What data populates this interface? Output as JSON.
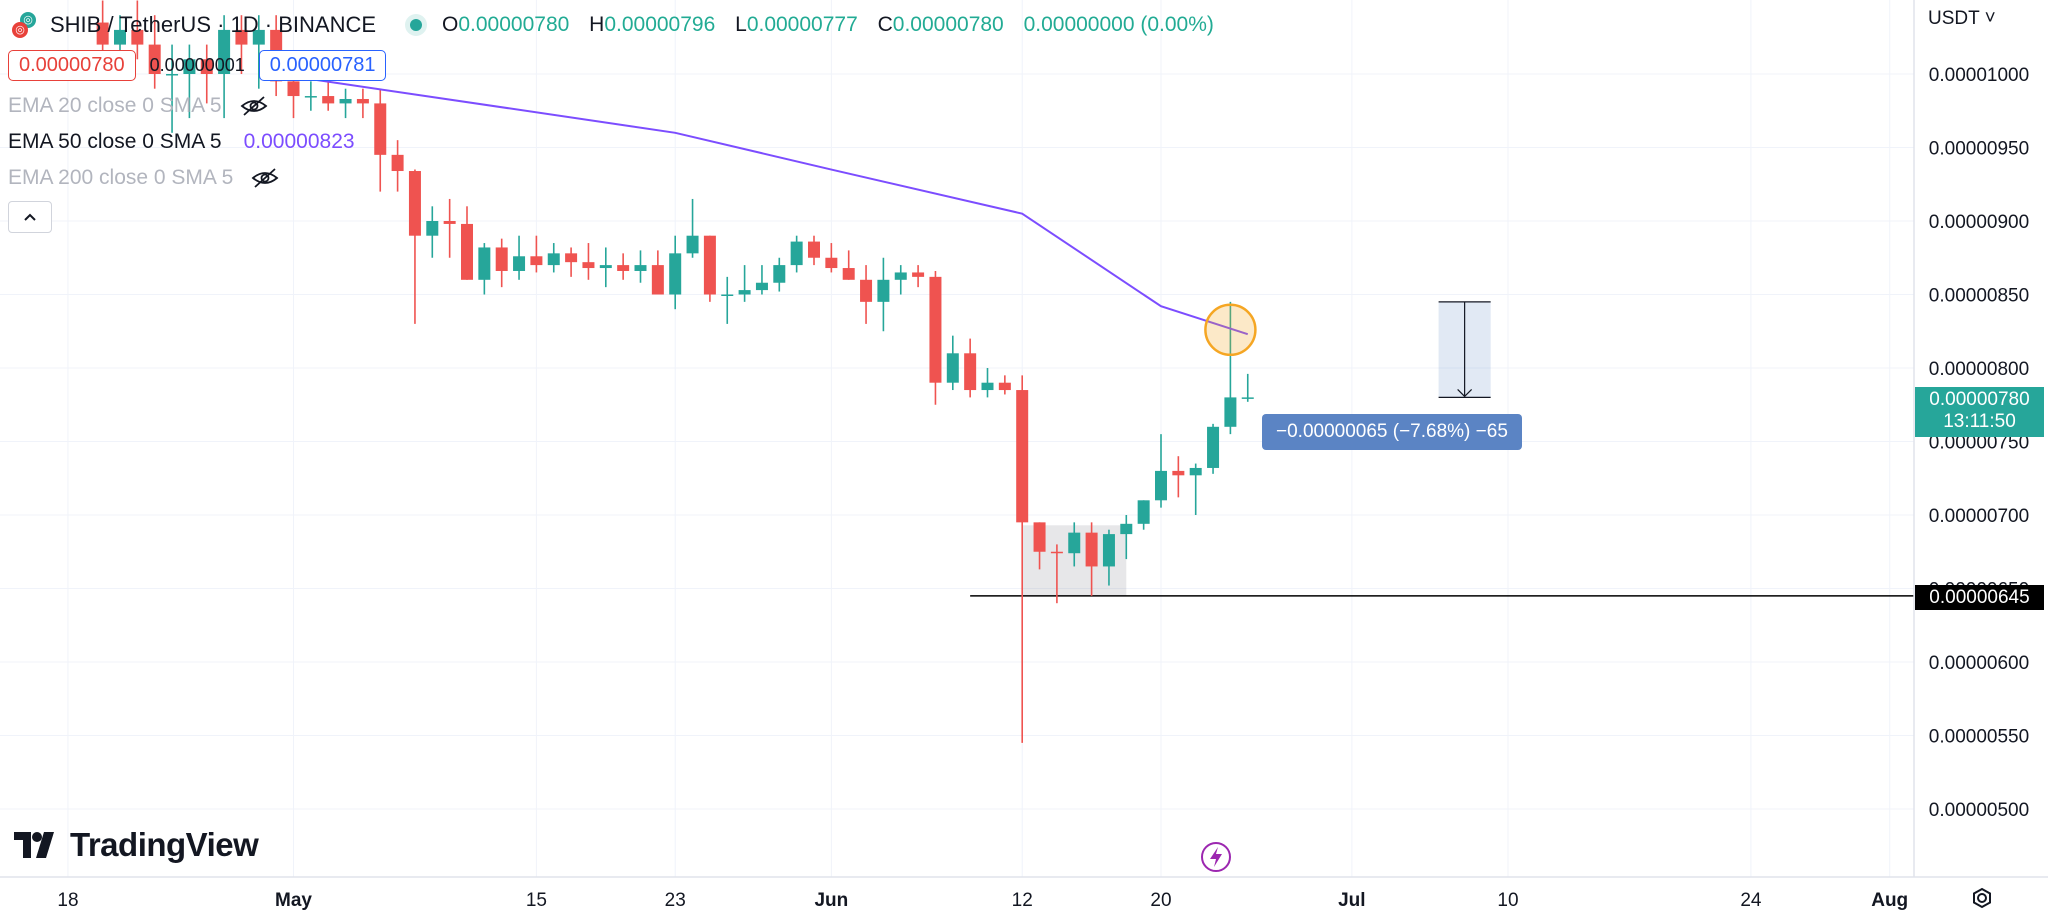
{
  "header": {
    "symbol_title": "SHIB / TetherUS · 1D · BINANCE",
    "ohlc": {
      "o_label": "O",
      "o": "0.00000780",
      "h_label": "H",
      "h": "0.00000796",
      "l_label": "L",
      "l": "0.00000777",
      "c_label": "C",
      "c": "0.00000780",
      "change": "0.00000000 (0.00%)"
    },
    "sell_price": "0.00000780",
    "spread": "0.00000001",
    "buy_price": "0.00000781"
  },
  "indicators": [
    {
      "label": "EMA 20 close 0 SMA 5",
      "visible": false
    },
    {
      "label": "EMA 50 close 0 SMA 5",
      "value": "0.00000823",
      "visible": true
    },
    {
      "label": "EMA 200 close 0 SMA 5",
      "visible": false
    }
  ],
  "quote_currency": "USDT",
  "brand": "TradingView",
  "labels": {
    "current_price": "0.00000780",
    "countdown": "13:11:50",
    "horizontal_line": "0.00000645",
    "measure": "−0.00000065 (−7.68%) −65"
  },
  "colors": {
    "up": "#26a69a",
    "down": "#ef5350",
    "ema50": "#7c4dff",
    "measure_fill": "#5b84c4",
    "highlight": "#f5a623"
  },
  "chart_data": {
    "type": "candlestick",
    "interval": "1D",
    "y_axis": {
      "ticks": [
        "0.00000500",
        "0.00000550",
        "0.00000600",
        "0.00000650",
        "0.00000700",
        "0.00000750",
        "0.00000800",
        "0.00000850",
        "0.00000900",
        "0.00000950",
        "0.00001000"
      ],
      "unit": "USDT"
    },
    "x_axis": {
      "ticks": [
        "18",
        "May",
        "15",
        "23",
        "Jun",
        "12",
        "20",
        "Jul",
        "10",
        "24",
        "Aug"
      ]
    },
    "candles": [
      {
        "date": "2024-04-20",
        "o": 1.035,
        "h": 1.05,
        "l": 1.01,
        "c": 1.02
      },
      {
        "date": "2024-04-21",
        "o": 1.02,
        "h": 1.04,
        "l": 1.0,
        "c": 1.03
      },
      {
        "date": "2024-04-22",
        "o": 1.03,
        "h": 1.05,
        "l": 1.01,
        "c": 1.02
      },
      {
        "date": "2024-04-23",
        "o": 1.02,
        "h": 1.04,
        "l": 0.99,
        "c": 1.0
      },
      {
        "date": "2024-04-24",
        "o": 1.0,
        "h": 1.02,
        "l": 0.96,
        "c": 1.0
      },
      {
        "date": "2024-04-25",
        "o": 1.0,
        "h": 1.02,
        "l": 0.97,
        "c": 1.01
      },
      {
        "date": "2024-04-26",
        "o": 1.01,
        "h": 1.02,
        "l": 0.98,
        "c": 1.0
      },
      {
        "date": "2024-04-27",
        "o": 1.0,
        "h": 1.04,
        "l": 0.97,
        "c": 1.03
      },
      {
        "date": "2024-04-28",
        "o": 1.03,
        "h": 1.04,
        "l": 1.0,
        "c": 1.02
      },
      {
        "date": "2024-04-29",
        "o": 1.02,
        "h": 1.04,
        "l": 0.99,
        "c": 1.03
      },
      {
        "date": "2024-04-30",
        "o": 1.03,
        "h": 1.04,
        "l": 0.985,
        "c": 0.995
      },
      {
        "date": "2024-05-01",
        "o": 0.995,
        "h": 1.0,
        "l": 0.97,
        "c": 0.985
      },
      {
        "date": "2024-05-02",
        "o": 0.985,
        "h": 0.995,
        "l": 0.975,
        "c": 0.985
      },
      {
        "date": "2024-05-03",
        "o": 0.985,
        "h": 0.995,
        "l": 0.975,
        "c": 0.98
      },
      {
        "date": "2024-05-04",
        "o": 0.98,
        "h": 0.99,
        "l": 0.97,
        "c": 0.983
      },
      {
        "date": "2024-05-05",
        "o": 0.983,
        "h": 0.99,
        "l": 0.97,
        "c": 0.98
      },
      {
        "date": "2024-05-06",
        "o": 0.98,
        "h": 0.99,
        "l": 0.92,
        "c": 0.945
      },
      {
        "date": "2024-05-07",
        "o": 0.945,
        "h": 0.955,
        "l": 0.92,
        "c": 0.934
      },
      {
        "date": "2024-05-08",
        "o": 0.934,
        "h": 0.935,
        "l": 0.83,
        "c": 0.89
      },
      {
        "date": "2024-05-09",
        "o": 0.89,
        "h": 0.91,
        "l": 0.875,
        "c": 0.9
      },
      {
        "date": "2024-05-10",
        "o": 0.9,
        "h": 0.915,
        "l": 0.875,
        "c": 0.898
      },
      {
        "date": "2024-05-11",
        "o": 0.898,
        "h": 0.91,
        "l": 0.86,
        "c": 0.86
      },
      {
        "date": "2024-05-12",
        "o": 0.86,
        "h": 0.885,
        "l": 0.85,
        "c": 0.882
      },
      {
        "date": "2024-05-13",
        "o": 0.882,
        "h": 0.888,
        "l": 0.855,
        "c": 0.866
      },
      {
        "date": "2024-05-14",
        "o": 0.866,
        "h": 0.89,
        "l": 0.86,
        "c": 0.876
      },
      {
        "date": "2024-05-15",
        "o": 0.876,
        "h": 0.89,
        "l": 0.865,
        "c": 0.87
      },
      {
        "date": "2024-05-16",
        "o": 0.87,
        "h": 0.885,
        "l": 0.865,
        "c": 0.878
      },
      {
        "date": "2024-05-17",
        "o": 0.878,
        "h": 0.882,
        "l": 0.862,
        "c": 0.872
      },
      {
        "date": "2024-05-18",
        "o": 0.872,
        "h": 0.885,
        "l": 0.86,
        "c": 0.868
      },
      {
        "date": "2024-05-19",
        "o": 0.868,
        "h": 0.882,
        "l": 0.855,
        "c": 0.87
      },
      {
        "date": "2024-05-20",
        "o": 0.87,
        "h": 0.878,
        "l": 0.86,
        "c": 0.866
      },
      {
        "date": "2024-05-21",
        "o": 0.866,
        "h": 0.88,
        "l": 0.858,
        "c": 0.87
      },
      {
        "date": "2024-05-22",
        "o": 0.87,
        "h": 0.88,
        "l": 0.85,
        "c": 0.85
      },
      {
        "date": "2024-05-23",
        "o": 0.85,
        "h": 0.89,
        "l": 0.84,
        "c": 0.878
      },
      {
        "date": "2024-05-24",
        "o": 0.878,
        "h": 0.915,
        "l": 0.875,
        "c": 0.89
      },
      {
        "date": "2024-05-25",
        "o": 0.89,
        "h": 0.89,
        "l": 0.845,
        "c": 0.85
      },
      {
        "date": "2024-05-26",
        "o": 0.85,
        "h": 0.862,
        "l": 0.83,
        "c": 0.85
      },
      {
        "date": "2024-05-27",
        "o": 0.85,
        "h": 0.87,
        "l": 0.845,
        "c": 0.853
      },
      {
        "date": "2024-05-28",
        "o": 0.853,
        "h": 0.87,
        "l": 0.85,
        "c": 0.858
      },
      {
        "date": "2024-05-29",
        "o": 0.858,
        "h": 0.875,
        "l": 0.852,
        "c": 0.87
      },
      {
        "date": "2024-05-30",
        "o": 0.87,
        "h": 0.89,
        "l": 0.865,
        "c": 0.886
      },
      {
        "date": "2024-05-31",
        "o": 0.886,
        "h": 0.89,
        "l": 0.87,
        "c": 0.875
      },
      {
        "date": "2024-06-01",
        "o": 0.875,
        "h": 0.885,
        "l": 0.865,
        "c": 0.868
      },
      {
        "date": "2024-06-02",
        "o": 0.868,
        "h": 0.88,
        "l": 0.86,
        "c": 0.86
      },
      {
        "date": "2024-06-03",
        "o": 0.86,
        "h": 0.87,
        "l": 0.83,
        "c": 0.845
      },
      {
        "date": "2024-06-04",
        "o": 0.845,
        "h": 0.875,
        "l": 0.825,
        "c": 0.86
      },
      {
        "date": "2024-06-05",
        "o": 0.86,
        "h": 0.87,
        "l": 0.85,
        "c": 0.865
      },
      {
        "date": "2024-06-06",
        "o": 0.865,
        "h": 0.87,
        "l": 0.855,
        "c": 0.862
      },
      {
        "date": "2024-06-07",
        "o": 0.862,
        "h": 0.866,
        "l": 0.775,
        "c": 0.79
      },
      {
        "date": "2024-06-08",
        "o": 0.79,
        "h": 0.822,
        "l": 0.785,
        "c": 0.81
      },
      {
        "date": "2024-06-09",
        "o": 0.81,
        "h": 0.82,
        "l": 0.78,
        "c": 0.785
      },
      {
        "date": "2024-06-10",
        "o": 0.785,
        "h": 0.8,
        "l": 0.78,
        "c": 0.79
      },
      {
        "date": "2024-06-11",
        "o": 0.79,
        "h": 0.795,
        "l": 0.782,
        "c": 0.785
      },
      {
        "date": "2024-06-12",
        "o": 0.785,
        "h": 0.795,
        "l": 0.545,
        "c": 0.695
      },
      {
        "date": "2024-06-13",
        "o": 0.695,
        "h": 0.695,
        "l": 0.663,
        "c": 0.675
      },
      {
        "date": "2024-06-14",
        "o": 0.675,
        "h": 0.68,
        "l": 0.64,
        "c": 0.674
      },
      {
        "date": "2024-06-15",
        "o": 0.674,
        "h": 0.695,
        "l": 0.665,
        "c": 0.688
      },
      {
        "date": "2024-06-16",
        "o": 0.688,
        "h": 0.695,
        "l": 0.645,
        "c": 0.665
      },
      {
        "date": "2024-06-17",
        "o": 0.665,
        "h": 0.69,
        "l": 0.652,
        "c": 0.687
      },
      {
        "date": "2024-06-18",
        "o": 0.687,
        "h": 0.7,
        "l": 0.67,
        "c": 0.694
      },
      {
        "date": "2024-06-19",
        "o": 0.694,
        "h": 0.71,
        "l": 0.69,
        "c": 0.71
      },
      {
        "date": "2024-06-20",
        "o": 0.71,
        "h": 0.755,
        "l": 0.705,
        "c": 0.73
      },
      {
        "date": "2024-06-21",
        "o": 0.73,
        "h": 0.74,
        "l": 0.712,
        "c": 0.727
      },
      {
        "date": "2024-06-22",
        "o": 0.727,
        "h": 0.735,
        "l": 0.7,
        "c": 0.732
      },
      {
        "date": "2024-06-23",
        "o": 0.732,
        "h": 0.762,
        "l": 0.728,
        "c": 0.76
      },
      {
        "date": "2024-06-24",
        "o": 0.76,
        "h": 0.845,
        "l": 0.755,
        "c": 0.78
      },
      {
        "date": "2024-06-25",
        "o": 0.78,
        "h": 0.796,
        "l": 0.777,
        "c": 0.78
      }
    ],
    "ema50": [
      {
        "date": "2024-04-30",
        "v": 1.0
      },
      {
        "date": "2024-05-23",
        "v": 0.96
      },
      {
        "date": "2024-06-01",
        "v": 0.935
      },
      {
        "date": "2024-06-12",
        "v": 0.905
      },
      {
        "date": "2024-06-20",
        "v": 0.842
      },
      {
        "date": "2024-06-25",
        "v": 0.823
      }
    ],
    "horizontal_line": 0.645,
    "measure": {
      "from_date": "2024-07-06",
      "to_date": "2024-07-09",
      "from_value": 0.845,
      "to_value": 0.78
    },
    "highlight_box": {
      "from_date": "2024-06-12",
      "to_date": "2024-06-18",
      "low": 0.645,
      "high": 0.693
    },
    "circle_marker": {
      "date": "2024-06-24",
      "value": 0.826
    }
  }
}
